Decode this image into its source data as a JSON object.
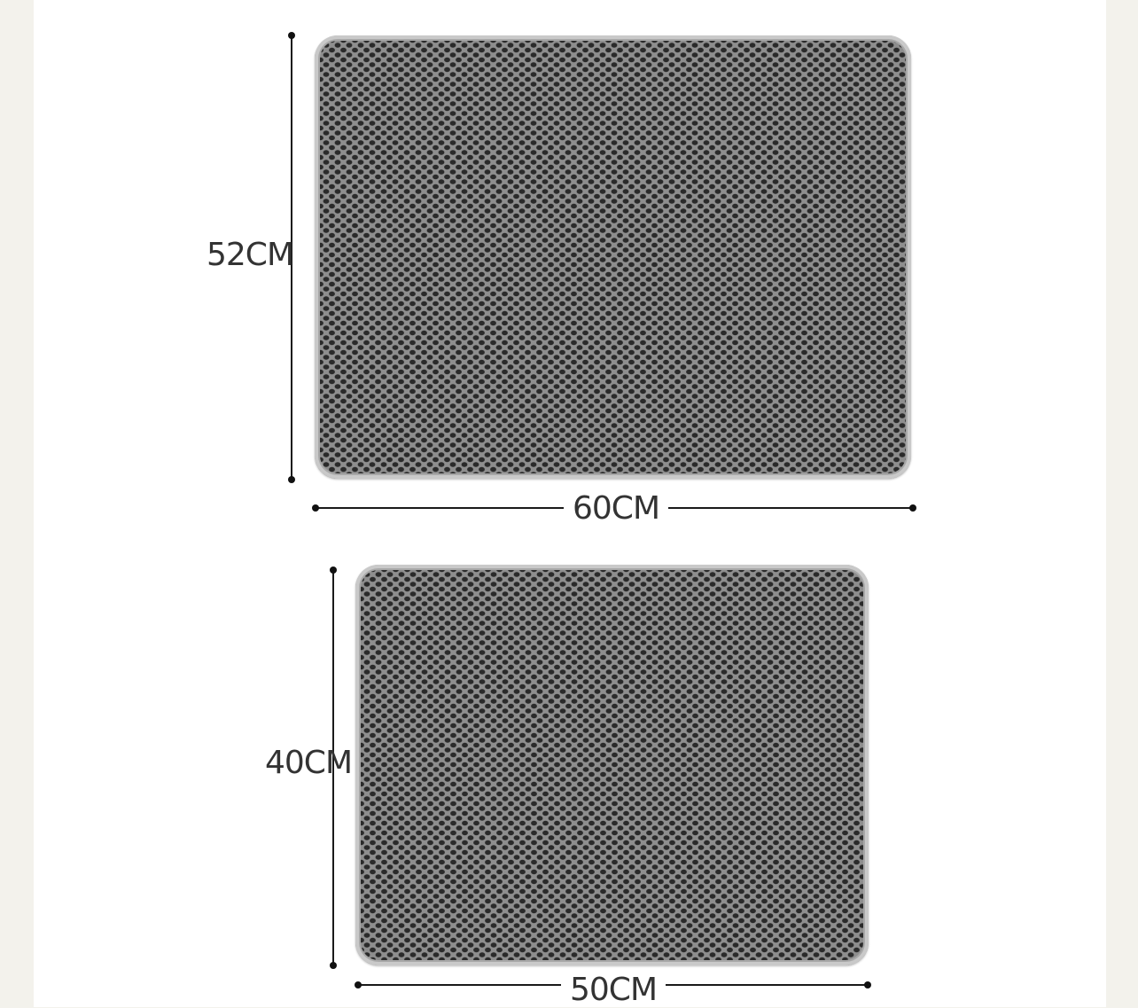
{
  "mats": [
    {
      "height_label": "52CM",
      "width_label": "60CM"
    },
    {
      "height_label": "40CM",
      "width_label": "50CM"
    }
  ],
  "colors": {
    "background": "#f3f2ec",
    "canvas": "#ffffff",
    "mat_gray": "#8e8e8e",
    "mat_hole": "#2a2a2a",
    "dimension_line": "#1a1a1a",
    "label_text": "#333333"
  }
}
